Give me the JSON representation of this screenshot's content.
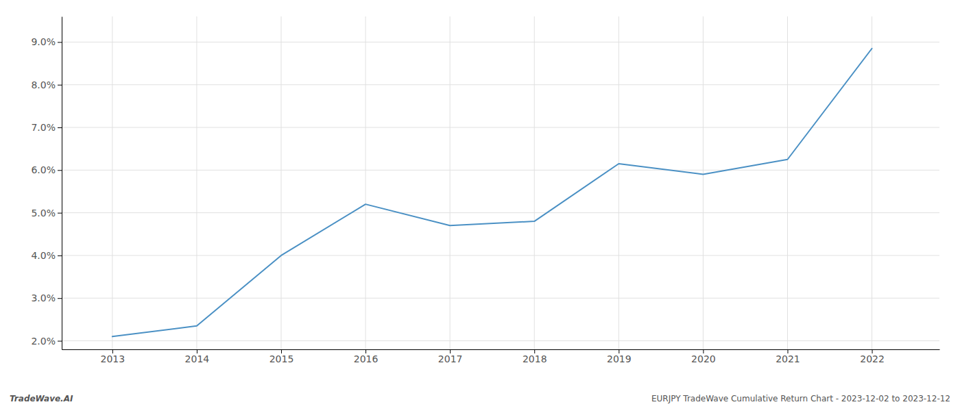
{
  "chart_data": {
    "type": "line",
    "x": [
      2013,
      2014,
      2015,
      2016,
      2017,
      2018,
      2019,
      2020,
      2021,
      2022
    ],
    "values": [
      2.1,
      2.35,
      4.0,
      5.2,
      4.7,
      4.8,
      6.15,
      5.9,
      6.25,
      8.85
    ],
    "color": "#4a90c4",
    "xlim": [
      2012.4,
      2022.8
    ],
    "xticks": [
      2013,
      2014,
      2015,
      2016,
      2017,
      2018,
      2019,
      2020,
      2021,
      2022
    ],
    "ylim": [
      1.8,
      9.6
    ],
    "yticks": [
      {
        "value": 2.0,
        "label": "2.0%"
      },
      {
        "value": 3.0,
        "label": "3.0%"
      },
      {
        "value": 4.0,
        "label": "4.0%"
      },
      {
        "value": 5.0,
        "label": "5.0%"
      },
      {
        "value": 6.0,
        "label": "6.0%"
      },
      {
        "value": 7.0,
        "label": "7.0%"
      },
      {
        "value": 8.0,
        "label": "8.0%"
      },
      {
        "value": 9.0,
        "label": "9.0%"
      }
    ],
    "grid": true,
    "annotations": [
      "TradeWave.AI",
      "EURJPY TradeWave Cumulative Return Chart - 2023-12-02 to 2023-12-12"
    ]
  }
}
